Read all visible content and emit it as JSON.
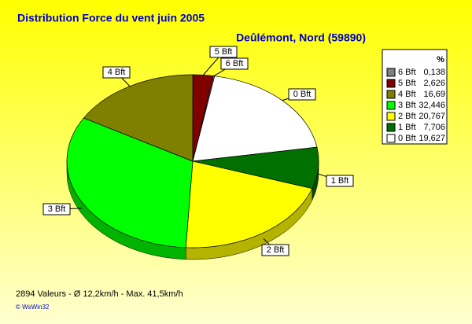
{
  "chart_data": {
    "type": "pie",
    "title": "Distribution Force du vent  juin 2005",
    "subtitle": "Deûlémont, Nord (59890)",
    "legend_header": "%",
    "categories": [
      "0 Bft",
      "1 Bft",
      "2 Bft",
      "3 Bft",
      "4 Bft",
      "5 Bft",
      "6 Bft"
    ],
    "values": [
      19.627,
      7.706,
      20.767,
      32.446,
      16.69,
      2.626,
      0.138
    ],
    "value_labels": [
      "19,627",
      "7,706",
      "20,767",
      "32,446",
      "16,69",
      "2,626",
      "0,138"
    ],
    "colors": [
      "#ffffff",
      "#007000",
      "#ffff00",
      "#00ff00",
      "#808000",
      "#800000",
      "#808080"
    ],
    "footer": "2894 Valeurs   -   Ø 12,2km/h  -  Max. 41,5km/h",
    "credit": "© WsWin32"
  }
}
